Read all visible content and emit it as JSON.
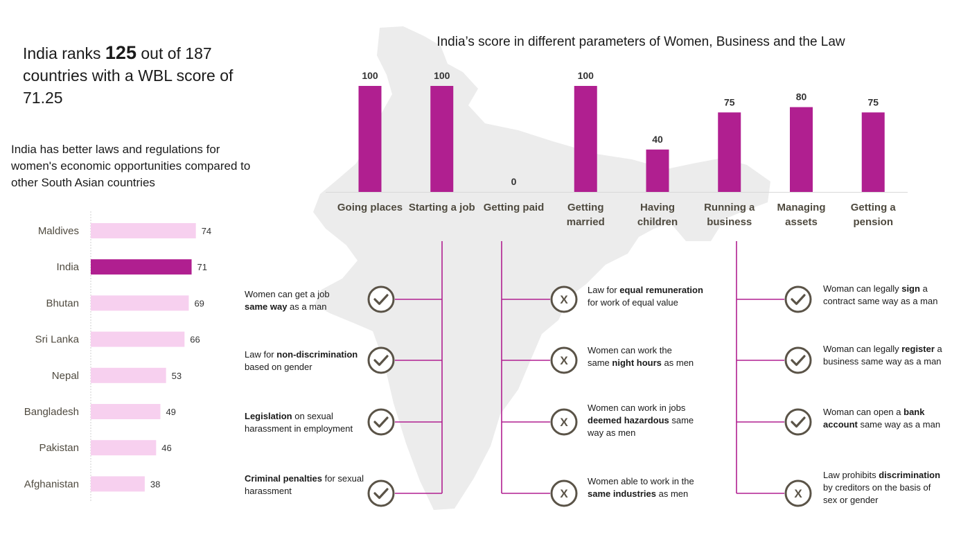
{
  "headline": {
    "pre": "India ranks ",
    "rank": "125",
    "post": " out of 187 countries with a WBL score of 71.25"
  },
  "subheadline": "India has better laws and regulations for women's economic opportunities compared to other South Asian countries",
  "chart_data": [
    {
      "type": "bar",
      "orientation": "horizontal",
      "title": "",
      "categories": [
        "Maldives",
        "India",
        "Bhutan",
        "Sri Lanka",
        "Nepal",
        "Bangladesh",
        "Pakistan",
        "Afghanistan"
      ],
      "values": [
        74,
        71,
        69,
        66,
        53,
        49,
        46,
        38
      ],
      "highlight": "India",
      "xlim": [
        0,
        100
      ],
      "colors": {
        "default": "#f7d0ef",
        "highlight": "#b01f90"
      },
      "grid": false,
      "legend": "none"
    },
    {
      "type": "bar",
      "orientation": "vertical",
      "title": "India’s score in different parameters of Women, Business and the Law",
      "categories": [
        [
          "Going places"
        ],
        [
          "Starting a job"
        ],
        [
          "Getting paid"
        ],
        [
          "Getting",
          "married"
        ],
        [
          "Having",
          "children"
        ],
        [
          "Running a",
          "business"
        ],
        [
          "Managing",
          "assets"
        ],
        [
          "Getting a",
          "pension"
        ]
      ],
      "values": [
        100,
        100,
        0,
        100,
        40,
        75,
        80,
        75
      ],
      "ylim": [
        0,
        100
      ],
      "color": "#b01f90",
      "grid": false,
      "legend": "none"
    }
  ],
  "details": {
    "starting_a_job": [
      {
        "status": "check",
        "parts": [
          {
            "t": "Women can get a job",
            "b": false
          },
          {
            "br": true
          },
          {
            "t": "same way",
            "b": true
          },
          {
            "t": " as a man",
            "b": false
          }
        ]
      },
      {
        "status": "check",
        "parts": [
          {
            "t": "Law for ",
            "b": false
          },
          {
            "t": "non-discrimination",
            "b": true
          },
          {
            "br": true
          },
          {
            "t": "based on gender",
            "b": false
          }
        ]
      },
      {
        "status": "check",
        "parts": [
          {
            "t": "Legislation",
            "b": true
          },
          {
            "t": " on sexual",
            "b": false
          },
          {
            "br": true
          },
          {
            "t": "harassment in employment",
            "b": false
          }
        ]
      },
      {
        "status": "check",
        "parts": [
          {
            "t": "Criminal penalties",
            "b": true
          },
          {
            "t": " for sexual",
            "b": false
          },
          {
            "br": true
          },
          {
            "t": "harassment",
            "b": false
          }
        ]
      }
    ],
    "getting_paid": [
      {
        "status": "cross",
        "parts": [
          {
            "t": "Law for ",
            "b": false
          },
          {
            "t": "equal remuneration",
            "b": true
          },
          {
            "br": true
          },
          {
            "t": "for work of equal value",
            "b": false
          }
        ]
      },
      {
        "status": "cross",
        "parts": [
          {
            "t": "Women can work the",
            "b": false
          },
          {
            "br": true
          },
          {
            "t": "same ",
            "b": false
          },
          {
            "t": "night hours",
            "b": true
          },
          {
            "t": " as men",
            "b": false
          }
        ]
      },
      {
        "status": "cross",
        "parts": [
          {
            "t": "Women can work in jobs",
            "b": false
          },
          {
            "br": true
          },
          {
            "t": "deemed hazardous",
            "b": true
          },
          {
            "t": " same",
            "b": false
          },
          {
            "br": true
          },
          {
            "t": "way as men",
            "b": false
          }
        ]
      },
      {
        "status": "cross",
        "parts": [
          {
            "t": "Women able to work in the",
            "b": false
          },
          {
            "br": true
          },
          {
            "t": "same industries",
            "b": true
          },
          {
            "t": " as men",
            "b": false
          }
        ]
      }
    ],
    "running_a_business": [
      {
        "status": "check",
        "parts": [
          {
            "t": "Woman can legally ",
            "b": false
          },
          {
            "t": "sign",
            "b": true
          },
          {
            "t": " a",
            "b": false
          },
          {
            "br": true
          },
          {
            "t": "contract same way as a man",
            "b": false
          }
        ]
      },
      {
        "status": "check",
        "parts": [
          {
            "t": "Woman can legally ",
            "b": false
          },
          {
            "t": "register",
            "b": true
          },
          {
            "t": " a",
            "b": false
          },
          {
            "br": true
          },
          {
            "t": "business same way as a man",
            "b": false
          }
        ]
      },
      {
        "status": "check",
        "parts": [
          {
            "t": "Woman can open a ",
            "b": false
          },
          {
            "t": "bank",
            "b": true
          },
          {
            "br": true
          },
          {
            "t": "account",
            "b": true
          },
          {
            "t": " same way as a man",
            "b": false
          }
        ]
      },
      {
        "status": "cross",
        "parts": [
          {
            "t": "Law prohibits ",
            "b": false
          },
          {
            "t": "discrimination",
            "b": true
          },
          {
            "br": true
          },
          {
            "t": "by creditors on the basis of",
            "b": false
          },
          {
            "br": true
          },
          {
            "t": "sex or gender",
            "b": false
          }
        ]
      }
    ]
  },
  "icons": {
    "check": "checkmark-icon",
    "cross": "x-icon",
    "cross_letter": "X"
  },
  "colors": {
    "accent": "#b01f90",
    "light_bar": "#f7d0ef",
    "connector": "#b01f90",
    "icon": "#5a5347",
    "map": "#ececec",
    "text": "#1a1a1a",
    "label": "#4f4a3f"
  }
}
